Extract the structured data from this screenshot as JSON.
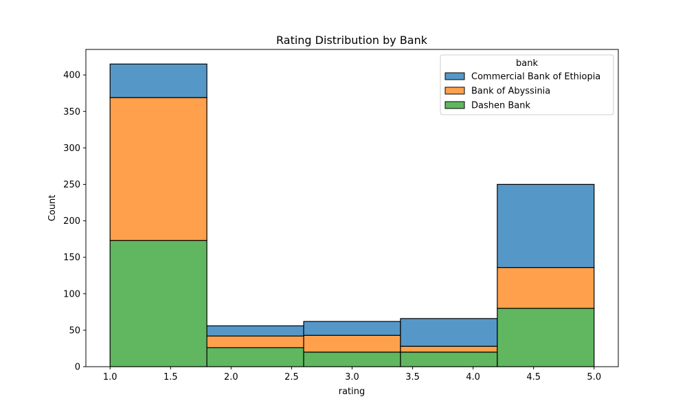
{
  "chart_data": {
    "type": "bar",
    "stacked": true,
    "title": "Rating Distribution by Bank",
    "xlabel": "rating",
    "ylabel": "Count",
    "xlim": [
      0.8,
      5.2
    ],
    "ylim": [
      0,
      435
    ],
    "xticks": [
      "1.0",
      "1.5",
      "2.0",
      "2.5",
      "3.0",
      "3.5",
      "4.0",
      "4.5",
      "5.0"
    ],
    "yticks": [
      "0",
      "50",
      "100",
      "150",
      "200",
      "250",
      "300",
      "350",
      "400"
    ],
    "bins": [
      [
        1.0,
        1.8
      ],
      [
        1.8,
        2.6
      ],
      [
        2.6,
        3.4
      ],
      [
        3.4,
        4.2
      ],
      [
        4.2,
        5.0
      ]
    ],
    "series": [
      {
        "name": "Dashen Bank",
        "color": "#60b760",
        "values": [
          173,
          26,
          20,
          20,
          80
        ]
      },
      {
        "name": "Bank of Abyssinia",
        "color": "#ffa04c",
        "values": [
          196,
          16,
          23,
          8,
          56
        ]
      },
      {
        "name": "Commercial Bank of Ethiopia",
        "color": "#5598c8",
        "values": [
          46,
          14,
          19,
          38,
          114
        ]
      }
    ],
    "legend": {
      "title": "bank",
      "position": "top-right",
      "entries": [
        "Commercial Bank of Ethiopia",
        "Bank of Abyssinia",
        "Dashen Bank"
      ]
    },
    "grid": false
  }
}
